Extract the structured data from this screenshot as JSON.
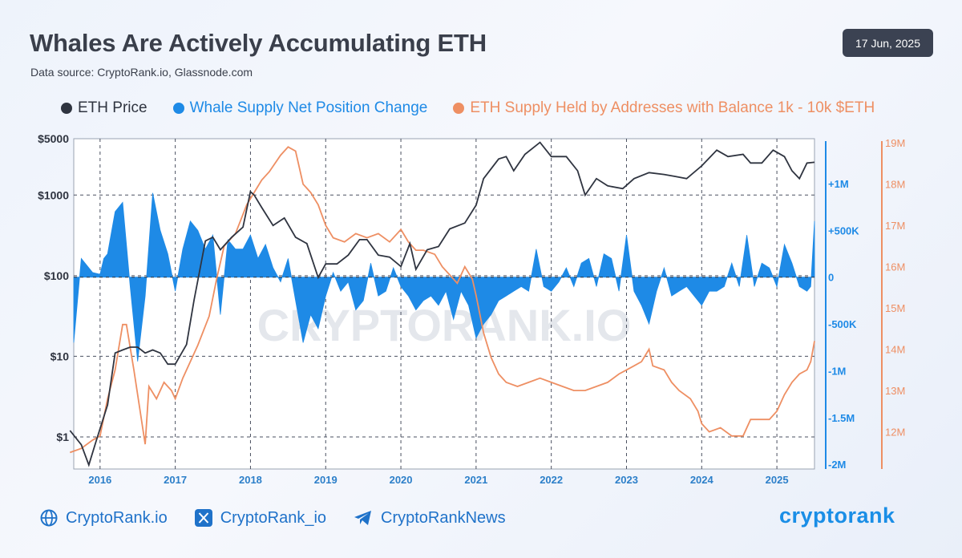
{
  "header": {
    "title": "Whales Are Actively Accumulating ETH",
    "subtitle": "Data source: CryptoRank.io, Glassnode.com",
    "date": "17 Jun, 2025"
  },
  "legend": [
    {
      "label": "ETH Price",
      "color": "#2f3440"
    },
    {
      "label": "Whale Supply Net Position Change",
      "color": "#1e8ae6"
    },
    {
      "label": "ETH Supply Held by Addresses with Balance 1k - 10k $ETH",
      "color": "#ee8f63"
    }
  ],
  "footer": {
    "website": "CryptoRank.io",
    "x_handle": "CryptoRank_io",
    "telegram": "CryptoRankNews",
    "brand": "cryptorank"
  },
  "watermark": "CRYPTORANK.IO",
  "chart_data": {
    "type": "line",
    "x_ticks": [
      "2016",
      "2017",
      "2018",
      "2019",
      "2020",
      "2021",
      "2022",
      "2023",
      "2024",
      "2025"
    ],
    "x_range": [
      2015.65,
      2025.5
    ],
    "y_left": {
      "scale": "log",
      "range": [
        0.4,
        5000
      ],
      "ticks": [
        1,
        10,
        100,
        1000,
        5000
      ],
      "tick_labels": [
        "$1",
        "$10",
        "$100",
        "$1000",
        "$5000"
      ]
    },
    "y_right_1": {
      "range": [
        -2050000,
        1480000
      ],
      "ticks": [
        1000000,
        500000,
        0,
        -500000,
        -1000000,
        -1500000,
        -2000000
      ],
      "tick_labels": [
        "+1M",
        "+500K",
        "0",
        "-500K",
        "-1M",
        "-1.5M",
        "-2M"
      ]
    },
    "y_right_2": {
      "range": [
        11.1,
        19.1
      ],
      "ticks": [
        19,
        18,
        17,
        16,
        15,
        14,
        13,
        12
      ],
      "tick_labels": [
        "19M",
        "18M",
        "17M",
        "16M",
        "15M",
        "14M",
        "13M",
        "12M"
      ]
    },
    "grid": true,
    "series": [
      {
        "name": "ETH Price",
        "axis": "left",
        "color": "#2f3440",
        "points": [
          [
            2015.6,
            1.2
          ],
          [
            2015.75,
            0.8
          ],
          [
            2015.85,
            0.45
          ],
          [
            2015.95,
            0.9
          ],
          [
            2016.1,
            2.5
          ],
          [
            2016.2,
            11
          ],
          [
            2016.3,
            12
          ],
          [
            2016.4,
            13
          ],
          [
            2016.5,
            13
          ],
          [
            2016.6,
            11
          ],
          [
            2016.7,
            12
          ],
          [
            2016.8,
            11
          ],
          [
            2016.9,
            8
          ],
          [
            2017.0,
            8
          ],
          [
            2017.15,
            14
          ],
          [
            2017.25,
            50
          ],
          [
            2017.4,
            270
          ],
          [
            2017.5,
            300
          ],
          [
            2017.6,
            210
          ],
          [
            2017.75,
            300
          ],
          [
            2017.9,
            400
          ],
          [
            2018.0,
            1100
          ],
          [
            2018.05,
            1000
          ],
          [
            2018.15,
            700
          ],
          [
            2018.3,
            420
          ],
          [
            2018.45,
            520
          ],
          [
            2018.6,
            300
          ],
          [
            2018.75,
            250
          ],
          [
            2018.9,
            95
          ],
          [
            2019.0,
            140
          ],
          [
            2019.15,
            140
          ],
          [
            2019.3,
            180
          ],
          [
            2019.45,
            280
          ],
          [
            2019.55,
            280
          ],
          [
            2019.7,
            180
          ],
          [
            2019.85,
            170
          ],
          [
            2020.0,
            130
          ],
          [
            2020.12,
            250
          ],
          [
            2020.2,
            120
          ],
          [
            2020.35,
            210
          ],
          [
            2020.5,
            230
          ],
          [
            2020.65,
            380
          ],
          [
            2020.85,
            450
          ],
          [
            2021.0,
            750
          ],
          [
            2021.1,
            1600
          ],
          [
            2021.3,
            2800
          ],
          [
            2021.4,
            3000
          ],
          [
            2021.5,
            2000
          ],
          [
            2021.65,
            3200
          ],
          [
            2021.85,
            4500
          ],
          [
            2022.0,
            3000
          ],
          [
            2022.2,
            3000
          ],
          [
            2022.35,
            2000
          ],
          [
            2022.45,
            1000
          ],
          [
            2022.6,
            1600
          ],
          [
            2022.75,
            1300
          ],
          [
            2022.95,
            1200
          ],
          [
            2023.1,
            1600
          ],
          [
            2023.3,
            1900
          ],
          [
            2023.5,
            1800
          ],
          [
            2023.65,
            1700
          ],
          [
            2023.8,
            1600
          ],
          [
            2024.0,
            2300
          ],
          [
            2024.2,
            3600
          ],
          [
            2024.35,
            3000
          ],
          [
            2024.55,
            3200
          ],
          [
            2024.65,
            2500
          ],
          [
            2024.8,
            2500
          ],
          [
            2024.95,
            3600
          ],
          [
            2025.1,
            3000
          ],
          [
            2025.2,
            2000
          ],
          [
            2025.3,
            1600
          ],
          [
            2025.4,
            2500
          ],
          [
            2025.5,
            2550
          ]
        ]
      },
      {
        "name": "Whale Supply Net Position Change",
        "axis": "right_1",
        "color": "#1e8ae6",
        "points": [
          [
            2015.65,
            -700000
          ],
          [
            2015.75,
            200000
          ],
          [
            2015.8,
            150000
          ],
          [
            2015.9,
            50000
          ],
          [
            2016.0,
            30000
          ],
          [
            2016.05,
            200000
          ],
          [
            2016.1,
            250000
          ],
          [
            2016.2,
            700000
          ],
          [
            2016.3,
            800000
          ],
          [
            2016.4,
            -100000
          ],
          [
            2016.5,
            -900000
          ],
          [
            2016.6,
            -200000
          ],
          [
            2016.7,
            900000
          ],
          [
            2016.8,
            500000
          ],
          [
            2016.9,
            250000
          ],
          [
            2017.0,
            -150000
          ],
          [
            2017.1,
            300000
          ],
          [
            2017.2,
            600000
          ],
          [
            2017.3,
            500000
          ],
          [
            2017.4,
            300000
          ],
          [
            2017.5,
            450000
          ],
          [
            2017.6,
            -400000
          ],
          [
            2017.7,
            400000
          ],
          [
            2017.8,
            300000
          ],
          [
            2017.9,
            300000
          ],
          [
            2018.0,
            450000
          ],
          [
            2018.1,
            200000
          ],
          [
            2018.2,
            350000
          ],
          [
            2018.3,
            100000
          ],
          [
            2018.4,
            -50000
          ],
          [
            2018.5,
            200000
          ],
          [
            2018.6,
            -250000
          ],
          [
            2018.7,
            -700000
          ],
          [
            2018.8,
            -400000
          ],
          [
            2018.9,
            -550000
          ],
          [
            2019.0,
            -200000
          ],
          [
            2019.1,
            50000
          ],
          [
            2019.2,
            -150000
          ],
          [
            2019.3,
            -50000
          ],
          [
            2019.4,
            -350000
          ],
          [
            2019.5,
            -250000
          ],
          [
            2019.6,
            150000
          ],
          [
            2019.7,
            -200000
          ],
          [
            2019.8,
            -150000
          ],
          [
            2019.9,
            100000
          ],
          [
            2020.0,
            -100000
          ],
          [
            2020.1,
            -200000
          ],
          [
            2020.2,
            -350000
          ],
          [
            2020.3,
            -250000
          ],
          [
            2020.4,
            -200000
          ],
          [
            2020.5,
            -300000
          ],
          [
            2020.6,
            -150000
          ],
          [
            2020.7,
            -450000
          ],
          [
            2020.8,
            -150000
          ],
          [
            2020.9,
            -300000
          ],
          [
            2021.0,
            -650000
          ],
          [
            2021.1,
            -500000
          ],
          [
            2021.2,
            -400000
          ],
          [
            2021.3,
            -250000
          ],
          [
            2021.4,
            -200000
          ],
          [
            2021.5,
            -150000
          ],
          [
            2021.6,
            -100000
          ],
          [
            2021.7,
            -150000
          ],
          [
            2021.8,
            300000
          ],
          [
            2021.9,
            -100000
          ],
          [
            2022.0,
            -150000
          ],
          [
            2022.1,
            -50000
          ],
          [
            2022.2,
            100000
          ],
          [
            2022.3,
            -100000
          ],
          [
            2022.4,
            150000
          ],
          [
            2022.5,
            200000
          ],
          [
            2022.6,
            -100000
          ],
          [
            2022.7,
            250000
          ],
          [
            2022.8,
            200000
          ],
          [
            2022.9,
            -150000
          ],
          [
            2023.0,
            450000
          ],
          [
            2023.1,
            -150000
          ],
          [
            2023.2,
            -300000
          ],
          [
            2023.3,
            -500000
          ],
          [
            2023.4,
            -150000
          ],
          [
            2023.5,
            100000
          ],
          [
            2023.6,
            -200000
          ],
          [
            2023.7,
            -150000
          ],
          [
            2023.8,
            -100000
          ],
          [
            2023.9,
            -200000
          ],
          [
            2024.0,
            -300000
          ],
          [
            2024.1,
            -150000
          ],
          [
            2024.2,
            -150000
          ],
          [
            2024.3,
            -100000
          ],
          [
            2024.4,
            150000
          ],
          [
            2024.5,
            -100000
          ],
          [
            2024.6,
            450000
          ],
          [
            2024.7,
            -100000
          ],
          [
            2024.8,
            150000
          ],
          [
            2024.9,
            100000
          ],
          [
            2025.0,
            -100000
          ],
          [
            2025.1,
            350000
          ],
          [
            2025.2,
            150000
          ],
          [
            2025.3,
            -100000
          ],
          [
            2025.4,
            -150000
          ],
          [
            2025.45,
            -100000
          ],
          [
            2025.5,
            600000
          ]
        ]
      },
      {
        "name": "ETH Supply Held by Addresses with Balance 1k - 10k $ETH",
        "axis": "right_2",
        "color": "#ee8f63",
        "points": [
          [
            2015.6,
            11.5
          ],
          [
            2015.75,
            11.6
          ],
          [
            2015.9,
            11.8
          ],
          [
            2016.0,
            11.9
          ],
          [
            2016.1,
            12.8
          ],
          [
            2016.2,
            13.5
          ],
          [
            2016.3,
            14.6
          ],
          [
            2016.35,
            14.6
          ],
          [
            2016.45,
            13.5
          ],
          [
            2016.55,
            12.3
          ],
          [
            2016.6,
            11.7
          ],
          [
            2016.65,
            13.1
          ],
          [
            2016.75,
            12.8
          ],
          [
            2016.85,
            13.2
          ],
          [
            2016.95,
            13.0
          ],
          [
            2017.0,
            12.8
          ],
          [
            2017.1,
            13.3
          ],
          [
            2017.2,
            13.7
          ],
          [
            2017.3,
            14.1
          ],
          [
            2017.45,
            14.8
          ],
          [
            2017.55,
            15.7
          ],
          [
            2017.65,
            16.5
          ],
          [
            2017.8,
            16.8
          ],
          [
            2017.95,
            17.5
          ],
          [
            2018.05,
            17.8
          ],
          [
            2018.15,
            18.1
          ],
          [
            2018.25,
            18.3
          ],
          [
            2018.4,
            18.7
          ],
          [
            2018.5,
            18.9
          ],
          [
            2018.6,
            18.8
          ],
          [
            2018.7,
            18.0
          ],
          [
            2018.8,
            17.8
          ],
          [
            2018.9,
            17.5
          ],
          [
            2019.0,
            17.0
          ],
          [
            2019.1,
            16.7
          ],
          [
            2019.25,
            16.6
          ],
          [
            2019.4,
            16.8
          ],
          [
            2019.55,
            16.7
          ],
          [
            2019.7,
            16.8
          ],
          [
            2019.85,
            16.6
          ],
          [
            2020.0,
            16.9
          ],
          [
            2020.1,
            16.6
          ],
          [
            2020.2,
            16.4
          ],
          [
            2020.3,
            16.4
          ],
          [
            2020.45,
            16.3
          ],
          [
            2020.55,
            16.0
          ],
          [
            2020.65,
            15.8
          ],
          [
            2020.75,
            15.6
          ],
          [
            2020.85,
            16.0
          ],
          [
            2020.95,
            15.7
          ],
          [
            2021.0,
            15.3
          ],
          [
            2021.1,
            14.4
          ],
          [
            2021.2,
            13.8
          ],
          [
            2021.3,
            13.4
          ],
          [
            2021.4,
            13.2
          ],
          [
            2021.55,
            13.1
          ],
          [
            2021.7,
            13.2
          ],
          [
            2021.85,
            13.3
          ],
          [
            2022.0,
            13.2
          ],
          [
            2022.15,
            13.1
          ],
          [
            2022.3,
            13.0
          ],
          [
            2022.45,
            13.0
          ],
          [
            2022.6,
            13.1
          ],
          [
            2022.75,
            13.2
          ],
          [
            2022.9,
            13.4
          ],
          [
            2023.0,
            13.5
          ],
          [
            2023.1,
            13.6
          ],
          [
            2023.2,
            13.7
          ],
          [
            2023.3,
            14.0
          ],
          [
            2023.35,
            13.6
          ],
          [
            2023.5,
            13.5
          ],
          [
            2023.6,
            13.2
          ],
          [
            2023.7,
            13.0
          ],
          [
            2023.85,
            12.8
          ],
          [
            2023.95,
            12.5
          ],
          [
            2024.0,
            12.2
          ],
          [
            2024.1,
            12.0
          ],
          [
            2024.25,
            12.1
          ],
          [
            2024.4,
            11.9
          ],
          [
            2024.55,
            11.9
          ],
          [
            2024.65,
            12.3
          ],
          [
            2024.75,
            12.3
          ],
          [
            2024.9,
            12.3
          ],
          [
            2025.0,
            12.5
          ],
          [
            2025.1,
            12.9
          ],
          [
            2025.2,
            13.2
          ],
          [
            2025.3,
            13.4
          ],
          [
            2025.4,
            13.5
          ],
          [
            2025.45,
            13.7
          ],
          [
            2025.5,
            14.2
          ]
        ]
      }
    ]
  }
}
